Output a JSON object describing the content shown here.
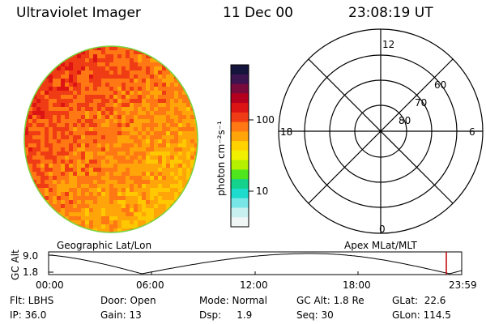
{
  "header": {
    "instrument": "Ultraviolet Imager",
    "date": "11 Dec 00",
    "time": "23:08:19 UT"
  },
  "colorbar": {
    "unit_label": "photon cm⁻²s⁻¹",
    "ticks": [
      "100",
      "10"
    ],
    "colors_top_to_bottom": [
      "#14143c",
      "#3c1450",
      "#780a3c",
      "#b4001e",
      "#dc1414",
      "#f03c14",
      "#ff7814",
      "#ffa50a",
      "#ffd200",
      "#f0f000",
      "#b4f000",
      "#50e61e",
      "#14d28c",
      "#1edccd",
      "#78e6e6",
      "#c8f0f0",
      "#f0f5f5"
    ]
  },
  "image_disk": {
    "palette": [
      "#dc1414",
      "#f03c14",
      "#ff7814",
      "#ffa50a",
      "#ffc800"
    ]
  },
  "polar_plot": {
    "lat_labels": [
      "80",
      "70",
      "60"
    ],
    "mlt_labels": {
      "top": "12",
      "left": "18",
      "right": "6",
      "bottom": "0"
    }
  },
  "altitude_plot": {
    "left_label": "Geographic Lat/Lon",
    "right_label": "Apex MLat/MLT",
    "y_axis_title": "GC Alt",
    "y_ticks": [
      "9.0",
      "1.8"
    ],
    "x_ticks": [
      "00:00",
      "06:00",
      "12:00",
      "18:00",
      "23:59"
    ],
    "marker_color": "#c00000"
  },
  "footer": {
    "flt": "Flt: LBHS",
    "ip": "IP: 36.0",
    "door": "Door: Open",
    "gain": "Gain: 13",
    "mode": "Mode: Normal",
    "dsp": "Dsp:     1.9",
    "gcalt": "GC Alt: 1.8 Re",
    "seq": "Seq: 30",
    "glat": "GLat:  22.6",
    "glon": "GLon: 114.5"
  }
}
